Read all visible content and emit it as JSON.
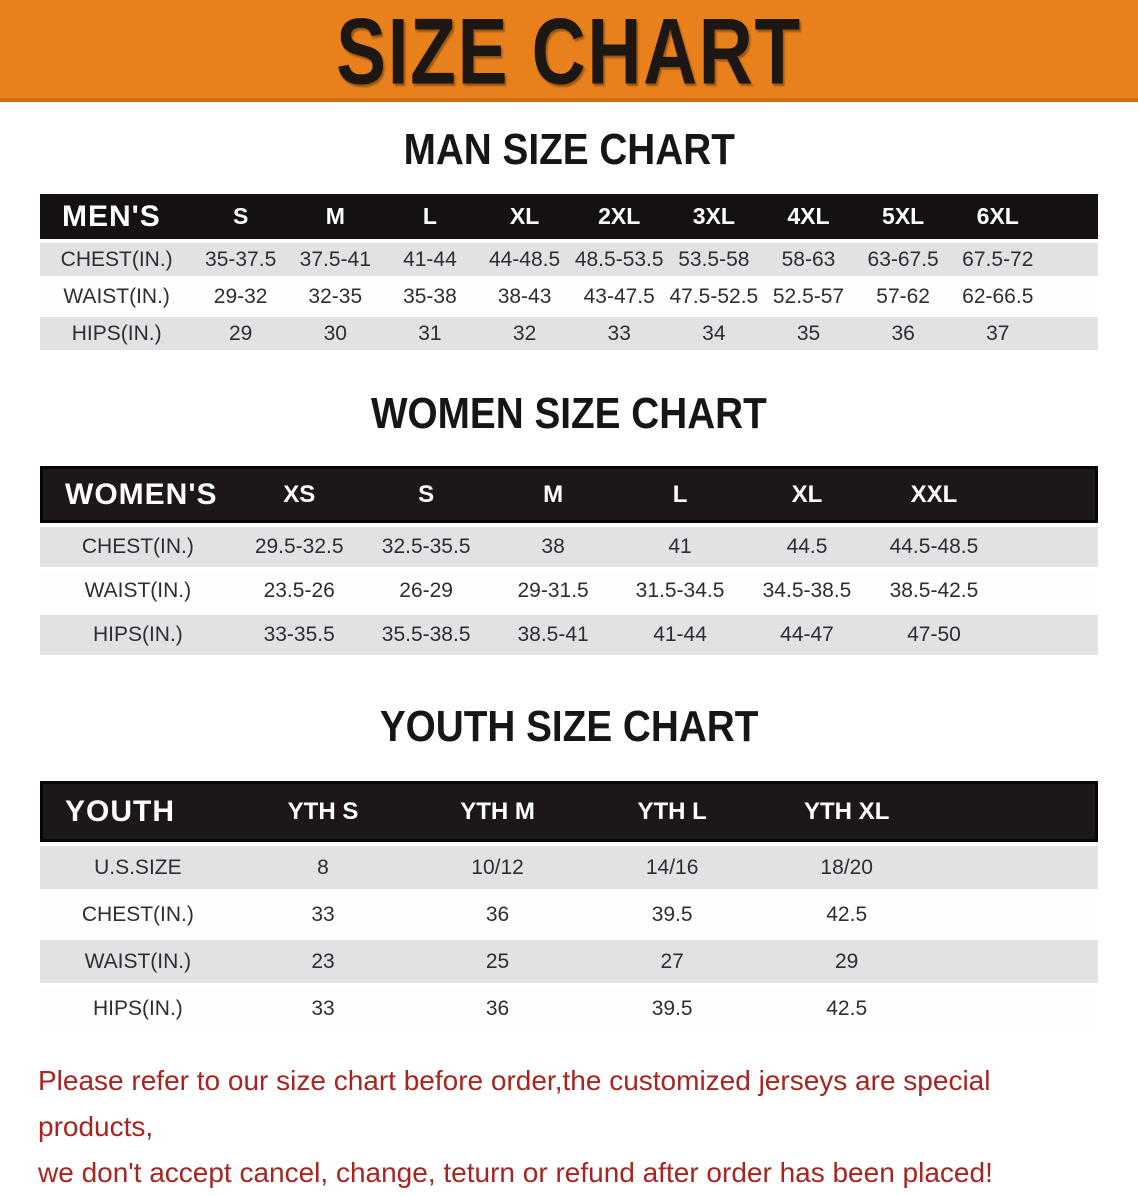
{
  "banner": {
    "title": "SIZE CHART"
  },
  "colors": {
    "banner-orange": "#e8811c",
    "banner-orange-dark": "#cf6e10",
    "bar-black": "#151011",
    "boxed-bar-black": "#1d1719",
    "row-gray": "#e2e2e4",
    "row-white": "#fefefe",
    "table-text": "#2d2d35",
    "heading-black": "#161616",
    "note-red": "#a82420"
  },
  "tables": [
    {
      "id": "men",
      "heading": "MAN SIZE CHART",
      "label": "MEN'S",
      "sizes": [
        "S",
        "M",
        "L",
        "XL",
        "2XL",
        "3XL",
        "4XL",
        "5XL",
        "6XL"
      ],
      "rows": [
        {
          "label": "CHEST(IN.)",
          "values": [
            "35-37.5",
            "37.5-41",
            "41-44",
            "44-48.5",
            "48.5-53.5",
            "53.5-58",
            "58-63",
            "63-67.5",
            "67.5-72"
          ]
        },
        {
          "label": "WAIST(IN.)",
          "values": [
            "29-32",
            "32-35",
            "35-38",
            "38-43",
            "43-47.5",
            "47.5-52.5",
            "52.5-57",
            "57-62",
            "62-66.5"
          ]
        },
        {
          "label": "HIPS(IN.)",
          "values": [
            "29",
            "30",
            "31",
            "32",
            "33",
            "34",
            "35",
            "36",
            "37"
          ]
        }
      ]
    },
    {
      "id": "women",
      "heading": "WOMEN SIZE CHART",
      "label": "WOMEN'S",
      "sizes": [
        "XS",
        "S",
        "M",
        "L",
        "XL",
        "XXL"
      ],
      "rows": [
        {
          "label": "CHEST(IN.)",
          "values": [
            "29.5-32.5",
            "32.5-35.5",
            "38",
            "41",
            "44.5",
            "44.5-48.5"
          ]
        },
        {
          "label": "WAIST(IN.)",
          "values": [
            "23.5-26",
            "26-29",
            "29-31.5",
            "31.5-34.5",
            "34.5-38.5",
            "38.5-42.5"
          ]
        },
        {
          "label": "HIPS(IN.)",
          "values": [
            "33-35.5",
            "35.5-38.5",
            "38.5-41",
            "41-44",
            "44-47",
            "47-50"
          ]
        }
      ]
    },
    {
      "id": "youth",
      "heading": "YOUTH SIZE CHART",
      "label": "YOUTH",
      "sizes": [
        "YTH S",
        "YTH M",
        "YTH L",
        "YTH XL"
      ],
      "rows": [
        {
          "label": "U.S.SIZE",
          "values": [
            "8",
            "10/12",
            "14/16",
            "18/20"
          ]
        },
        {
          "label": "CHEST(IN.)",
          "values": [
            "33",
            "36",
            "39.5",
            "42.5"
          ]
        },
        {
          "label": "WAIST(IN.)",
          "values": [
            "23",
            "25",
            "27",
            "29"
          ]
        },
        {
          "label": "HIPS(IN.)",
          "values": [
            "33",
            "36",
            "39.5",
            "42.5"
          ]
        }
      ]
    }
  ],
  "note": {
    "line1": "Please refer to our size chart before order,the customized jerseys are special products,",
    "line2": "we don't accept cancel, change, teturn or refund after order has been placed!"
  }
}
